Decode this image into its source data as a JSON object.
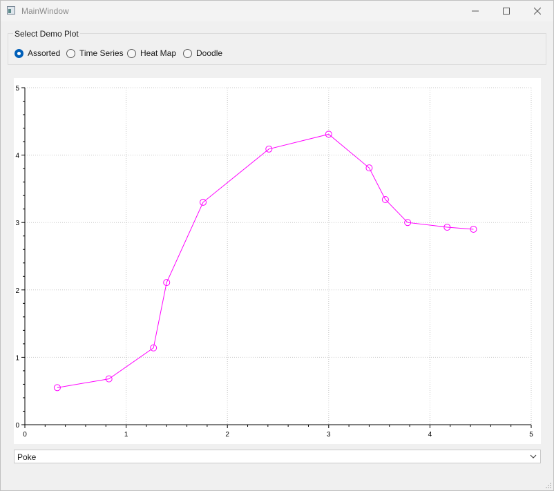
{
  "window": {
    "title": "MainWindow",
    "icons": {
      "app": "app-window-icon",
      "minimize": "minimize-icon",
      "maximize": "maximize-icon",
      "close": "close-icon"
    }
  },
  "demo_group": {
    "title": "Select Demo Plot",
    "options": [
      {
        "label": "Assorted",
        "checked": true
      },
      {
        "label": "Time Series",
        "checked": false
      },
      {
        "label": "Heat Map",
        "checked": false
      },
      {
        "label": "Doodle",
        "checked": false
      }
    ]
  },
  "chart_data": {
    "type": "line",
    "title": "",
    "xlabel": "",
    "ylabel": "",
    "xlim": [
      0,
      5
    ],
    "ylim": [
      0,
      5
    ],
    "x_ticks": [
      "0",
      "1",
      "2",
      "3",
      "4",
      "5"
    ],
    "y_ticks": [
      "0",
      "1",
      "2",
      "3",
      "4",
      "5"
    ],
    "grid": true,
    "series": [
      {
        "color": "#ff00ff",
        "marker": "open-circle",
        "points": [
          [
            0.32,
            0.55
          ],
          [
            0.83,
            0.68
          ],
          [
            1.27,
            1.14
          ],
          [
            1.4,
            2.11
          ],
          [
            1.76,
            3.3
          ],
          [
            2.41,
            4.09
          ],
          [
            3.0,
            4.31
          ],
          [
            3.4,
            3.81
          ],
          [
            3.56,
            3.34
          ],
          [
            3.78,
            3.0
          ],
          [
            4.17,
            2.93
          ],
          [
            4.43,
            2.9
          ]
        ]
      }
    ]
  },
  "poke": {
    "selected": "Poke",
    "chevron_icon": "chevron-down-icon"
  }
}
